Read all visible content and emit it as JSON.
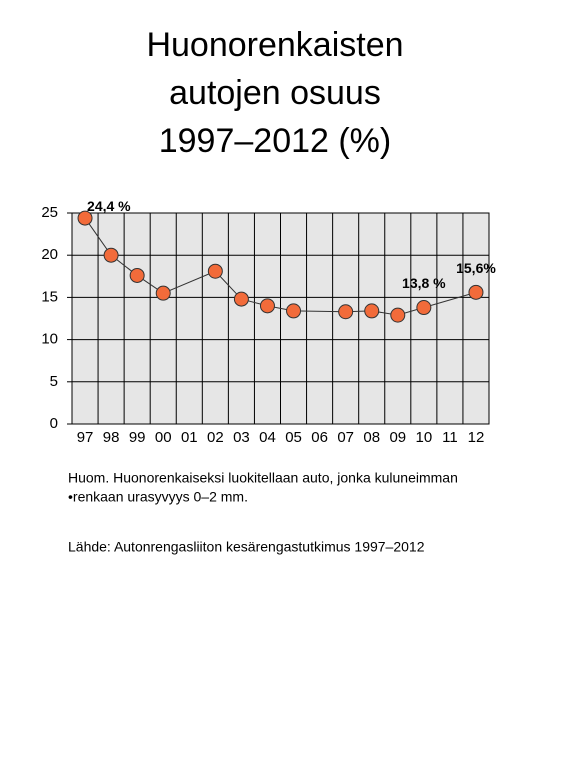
{
  "chart_data": {
    "type": "line",
    "title": [
      "Huonorenkaisten",
      "autojen osuus",
      "1997–2012 (%)"
    ],
    "categories": [
      "97",
      "98",
      "99",
      "00",
      "01",
      "02",
      "03",
      "04",
      "05",
      "06",
      "07",
      "08",
      "09",
      "10",
      "11",
      "12"
    ],
    "values": [
      24.4,
      20.0,
      17.6,
      15.5,
      null,
      18.1,
      14.8,
      14.0,
      13.4,
      null,
      13.3,
      13.4,
      12.9,
      13.8,
      null,
      15.6
    ],
    "value_labels": [
      "24,4 %",
      null,
      null,
      null,
      null,
      null,
      null,
      null,
      null,
      null,
      null,
      null,
      null,
      "13,8 %",
      null,
      "15,6%"
    ],
    "color": "#f26b3a",
    "connect_gaps": true,
    "ylim": [
      0,
      25
    ],
    "yticks": [
      0,
      5,
      10,
      15,
      20,
      25
    ],
    "grid": true
  },
  "notes": [
    "Huom. Huonorenkaiseksi luokitellaan auto, jonka kuluneimman",
    "•renkaan urasyvyys  0–2 mm.",
    "Lähde: Autonrengasliiton kesärengastutkimus 1997–2012"
  ]
}
